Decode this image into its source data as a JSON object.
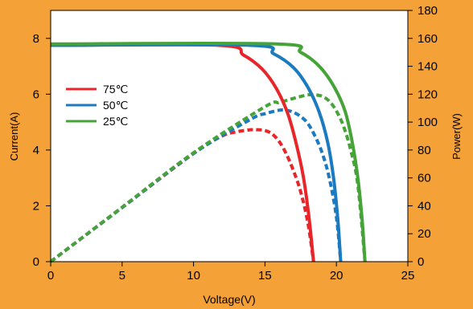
{
  "chart_data": {
    "type": "line",
    "xlabel": "Voltage(V)",
    "ylabel_left": "Current(A)",
    "ylabel_right": "Power(W)",
    "xlim": [
      0,
      25
    ],
    "ylim_left": [
      0,
      9
    ],
    "ylim_right": [
      0,
      180
    ],
    "x_ticks": [
      0,
      5,
      10,
      15,
      20,
      25
    ],
    "y_left_ticks": [
      0,
      2,
      4,
      6,
      8
    ],
    "y_right_ticks": [
      0,
      20,
      40,
      60,
      80,
      100,
      120,
      140,
      160,
      180
    ],
    "grid": false,
    "legend_position": "left",
    "series": [
      {
        "name": "75℃",
        "color": "#e8262a",
        "current": {
          "x": [
            0,
            11.8,
            13.5,
            14.8,
            15.8,
            16.6,
            17.2,
            17.7,
            18.1,
            18.4
          ],
          "y": [
            7.75,
            7.75,
            7.4,
            6.9,
            6.2,
            5.3,
            4.2,
            3.0,
            1.5,
            0
          ]
        },
        "power": {
          "x": [
            0,
            5,
            10,
            12,
            13,
            14,
            14.5,
            15,
            15.5,
            16,
            16.5,
            17,
            17.5,
            18,
            18.4
          ],
          "y": [
            0,
            38.75,
            77.5,
            90,
            93,
            94.5,
            94.5,
            94,
            91.5,
            86,
            77,
            65,
            50,
            28,
            0
          ]
        }
      },
      {
        "name": "50℃",
        "color": "#1b7ac0",
        "current": {
          "x": [
            0,
            14.0,
            15.6,
            17.0,
            18.0,
            18.8,
            19.4,
            19.8,
            20.1,
            20.3
          ],
          "y": [
            7.75,
            7.75,
            7.45,
            6.95,
            6.25,
            5.35,
            4.25,
            3.0,
            1.5,
            0
          ]
        },
        "power": {
          "x": [
            0,
            5,
            10,
            14,
            15,
            16,
            16.5,
            17,
            17.5,
            18,
            18.5,
            19,
            19.5,
            20,
            20.3
          ],
          "y": [
            0,
            38.75,
            77.5,
            102,
            106,
            108.5,
            108.5,
            107,
            104,
            99,
            90,
            78,
            60,
            32,
            0
          ]
        }
      },
      {
        "name": "25℃",
        "color": "#45a338",
        "current": {
          "x": [
            0,
            15.8,
            17.5,
            18.8,
            19.8,
            20.6,
            21.1,
            21.5,
            21.8,
            22.0
          ],
          "y": [
            7.8,
            7.8,
            7.5,
            7.0,
            6.3,
            5.4,
            4.3,
            3.0,
            1.5,
            0
          ]
        },
        "power": {
          "x": [
            0,
            5,
            10,
            15,
            16,
            17,
            18,
            18.5,
            19,
            19.5,
            20,
            20.5,
            21,
            21.5,
            22
          ],
          "y": [
            0,
            39,
            78,
            111,
            114,
            117,
            119.5,
            119.5,
            118.5,
            115,
            108,
            97,
            80,
            55,
            0
          ]
        }
      }
    ]
  }
}
